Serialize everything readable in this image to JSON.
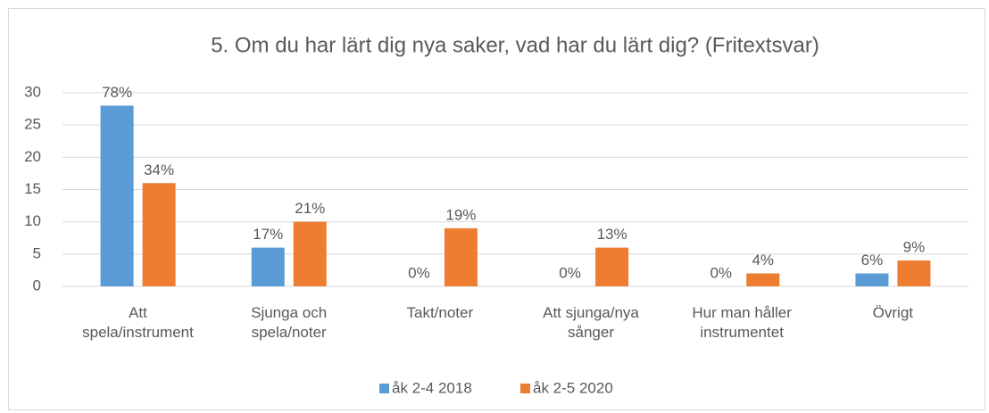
{
  "chart_data": {
    "type": "bar",
    "title": "5. Om du har lärt dig nya saker, vad har du lärt dig? (Fritextsvar)",
    "categories": [
      "Att\nspela/instrument",
      "Sjunga och\nspela/noter",
      "Takt/noter",
      "Att sjunga/nya\nsånger",
      "Hur man håller\ninstrumentet",
      "Övrigt"
    ],
    "series": [
      {
        "name": "åk 2-4 2018",
        "color": "#5b9bd5",
        "values": [
          28,
          6,
          0,
          0,
          0,
          2
        ],
        "data_labels": [
          "78%",
          "17%",
          "0%",
          "0%",
          "0%",
          "6%"
        ]
      },
      {
        "name": "åk 2-5 2020",
        "color": "#ed7d31",
        "values": [
          16,
          10,
          9,
          6,
          2,
          4
        ],
        "data_labels": [
          "34%",
          "21%",
          "19%",
          "13%",
          "4%",
          "9%"
        ]
      }
    ],
    "ylim": [
      0,
      30
    ],
    "yticks": [
      0,
      5,
      10,
      15,
      20,
      25,
      30
    ],
    "grid": true,
    "legend": "bottom"
  }
}
